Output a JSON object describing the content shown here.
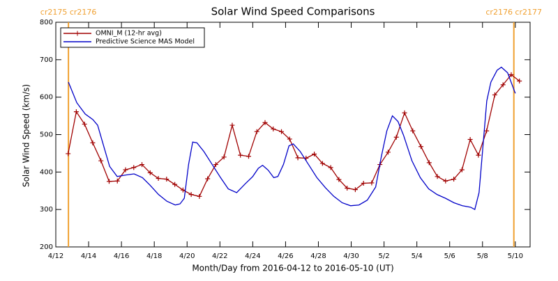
{
  "chart_data": {
    "type": "line",
    "title": "Solar Wind Speed Comparisons",
    "xlabel": "Month/Day from 2016-04-12 to 2016-05-10 (UT)",
    "ylabel": "Solar Wind Speed (km/s)",
    "xlim": [
      0,
      28.9
    ],
    "ylim": [
      200,
      800
    ],
    "xticks": [
      {
        "value": 0,
        "label": "4/12"
      },
      {
        "value": 2,
        "label": "4/14"
      },
      {
        "value": 4,
        "label": "4/16"
      },
      {
        "value": 6,
        "label": "4/18"
      },
      {
        "value": 8,
        "label": "4/20"
      },
      {
        "value": 10,
        "label": "4/22"
      },
      {
        "value": 12,
        "label": "4/24"
      },
      {
        "value": 14,
        "label": "4/26"
      },
      {
        "value": 16,
        "label": "4/28"
      },
      {
        "value": 18,
        "label": "4/30"
      },
      {
        "value": 20,
        "label": "5/2"
      },
      {
        "value": 22,
        "label": "5/4"
      },
      {
        "value": 24,
        "label": "5/6"
      },
      {
        "value": 26,
        "label": "5/8"
      },
      {
        "value": 28,
        "label": "5/10"
      }
    ],
    "yticks": [
      200,
      300,
      400,
      500,
      600,
      700,
      800
    ],
    "legend": "upper left",
    "annotations": [
      {
        "text": "cr2175 cr2176",
        "x": 0.77,
        "color": "#f0a030"
      },
      {
        "text": "cr2176 cr2177",
        "x": 27.91,
        "color": "#f0a030"
      }
    ],
    "series": [
      {
        "name": "OMNI_M (12-hr avg)",
        "color": "#a00000",
        "marker": "+",
        "x": [
          0.75,
          1.25,
          1.75,
          2.25,
          2.75,
          3.25,
          3.75,
          4.25,
          4.75,
          5.25,
          5.75,
          6.25,
          6.75,
          7.25,
          7.75,
          8.25,
          8.75,
          9.25,
          9.75,
          10.25,
          10.75,
          11.25,
          11.75,
          12.25,
          12.75,
          13.25,
          13.75,
          14.25,
          14.75,
          15.25,
          15.75,
          16.25,
          16.75,
          17.25,
          17.75,
          18.25,
          18.75,
          19.25,
          19.75,
          20.25,
          20.75,
          21.25,
          21.75,
          22.25,
          22.75,
          23.25,
          23.75,
          24.25,
          24.75,
          25.25,
          25.75,
          26.25,
          26.75,
          27.25,
          27.75,
          28.25
        ],
        "values": [
          449,
          561,
          528,
          478,
          430,
          375,
          376,
          406,
          412,
          420,
          398,
          383,
          381,
          367,
          352,
          340,
          335,
          382,
          420,
          440,
          525,
          445,
          442,
          508,
          532,
          515,
          508,
          488,
          438,
          437,
          448,
          423,
          412,
          380,
          357,
          353,
          370,
          371,
          420,
          453,
          493,
          558,
          510,
          468,
          425,
          388,
          376,
          381,
          406,
          487,
          445,
          510,
          606,
          633,
          660,
          643
        ]
      },
      {
        "name": "Predictive Science MAS Model",
        "color": "#0000c8",
        "x": [
          0.77,
          1.28,
          1.79,
          2.26,
          2.55,
          2.98,
          3.28,
          3.74,
          4.26,
          4.77,
          5.28,
          5.74,
          6.26,
          6.77,
          7.28,
          7.57,
          7.83,
          8.09,
          8.34,
          8.6,
          9.02,
          9.53,
          10.04,
          10.51,
          11.02,
          11.53,
          12.0,
          12.34,
          12.6,
          12.94,
          13.28,
          13.53,
          13.87,
          14.21,
          14.47,
          14.89,
          15.4,
          15.91,
          16.43,
          16.94,
          17.45,
          17.96,
          18.47,
          18.98,
          19.49,
          19.83,
          20.17,
          20.51,
          20.85,
          21.19,
          21.7,
          22.21,
          22.72,
          23.23,
          23.74,
          24.26,
          24.77,
          25.28,
          25.53,
          25.79,
          26.26,
          26.51,
          26.89,
          27.15,
          27.53,
          28.0
        ],
        "values": [
          640,
          585,
          555,
          540,
          525,
          460,
          415,
          388,
          392,
          395,
          385,
          365,
          340,
          322,
          312,
          315,
          330,
          420,
          480,
          478,
          455,
          420,
          385,
          355,
          345,
          368,
          388,
          410,
          418,
          405,
          385,
          388,
          420,
          470,
          475,
          455,
          420,
          385,
          358,
          335,
          318,
          310,
          312,
          325,
          360,
          440,
          510,
          550,
          535,
          498,
          430,
          385,
          355,
          340,
          330,
          318,
          310,
          306,
          300,
          345,
          590,
          640,
          672,
          680,
          665,
          610
        ]
      }
    ]
  }
}
